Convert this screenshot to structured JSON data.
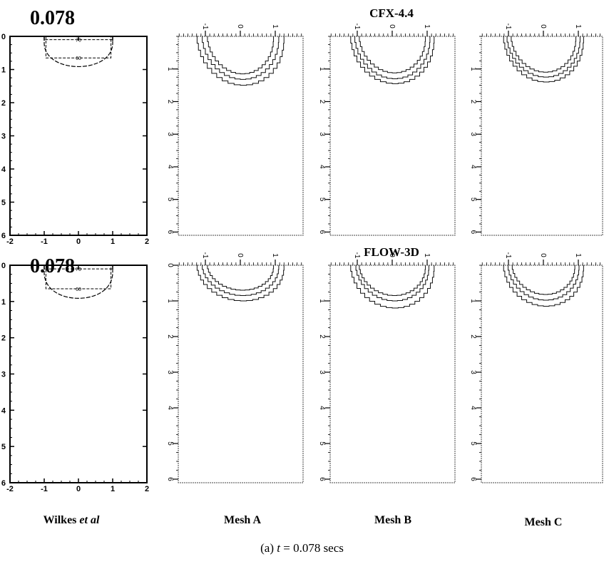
{
  "figure": {
    "time_label_top": "0.078",
    "time_label_bottom": "0.078",
    "row_titles": [
      "CFX-4.4",
      "FLOW-3D"
    ],
    "column_labels": {
      "wilkes_name": "Wilkes",
      "wilkes_suffix": "et al",
      "mesh_a": "Mesh A",
      "mesh_b": "Mesh B",
      "mesh_c": "Mesh C"
    },
    "caption": {
      "prefix": "(a)",
      "variable": "t",
      "equals": "=",
      "value": "0.078",
      "unit": "secs"
    }
  },
  "chart_data": [
    {
      "type": "contour",
      "panel": "Wilkes et al (row 1)",
      "xlim": [
        -2,
        2
      ],
      "ylim": [
        0,
        6
      ],
      "y_inverted": true,
      "xticks": [
        "-2",
        "-1",
        "0",
        "1",
        "2"
      ],
      "yticks": [
        "0",
        "1",
        "2",
        "3",
        "4",
        "5",
        "6"
      ],
      "contours": [
        {
          "level": "70",
          "halfwidth": 1.0,
          "depth": 0.1
        },
        {
          "level": "60",
          "halfwidth": 0.95,
          "depth": 0.65
        },
        {
          "level": "",
          "halfwidth": 1.0,
          "depth": 1.15
        }
      ]
    },
    {
      "type": "contour",
      "panel": "CFX-4.4 Mesh A",
      "xticks": [
        "-1",
        "0",
        "1"
      ],
      "yticks": [
        "1",
        "2",
        "3",
        "4",
        "5",
        "6"
      ],
      "contours": [
        {
          "halfwidth": 1.25,
          "depth": 1.5
        },
        {
          "halfwidth": 1.1,
          "depth": 1.32
        },
        {
          "halfwidth": 0.95,
          "depth": 1.15
        }
      ]
    },
    {
      "type": "contour",
      "panel": "CFX-4.4 Mesh B",
      "xticks": [
        "-1",
        "0",
        "1"
      ],
      "yticks": [
        "1",
        "2",
        "3",
        "4",
        "5",
        "6"
      ],
      "contours": [
        {
          "halfwidth": 1.2,
          "depth": 1.45
        },
        {
          "halfwidth": 1.08,
          "depth": 1.3
        },
        {
          "halfwidth": 0.95,
          "depth": 1.12
        }
      ]
    },
    {
      "type": "contour",
      "panel": "CFX-4.4 Mesh C",
      "xticks": [
        "-1",
        "0",
        "1"
      ],
      "yticks": [
        "1",
        "2",
        "3",
        "4",
        "5",
        "6"
      ],
      "contours": [
        {
          "halfwidth": 1.15,
          "depth": 1.4
        },
        {
          "halfwidth": 1.05,
          "depth": 1.25
        },
        {
          "halfwidth": 0.93,
          "depth": 1.1
        }
      ]
    },
    {
      "type": "contour",
      "panel": "FLOW-3D Mesh A",
      "xticks": [
        "-1",
        "0",
        "1"
      ],
      "yticks": [
        "0",
        "1",
        "2",
        "3",
        "4",
        "5",
        "6"
      ],
      "contours": [
        {
          "halfwidth": 1.25,
          "depth": 1.0
        },
        {
          "halfwidth": 1.1,
          "depth": 0.85
        },
        {
          "halfwidth": 0.95,
          "depth": 0.7
        }
      ]
    },
    {
      "type": "contour",
      "panel": "FLOW-3D Mesh B",
      "xticks": [
        "-1",
        "0",
        "1"
      ],
      "yticks": [
        "1",
        "2",
        "3",
        "4",
        "5",
        "6"
      ],
      "contours": [
        {
          "halfwidth": 1.2,
          "depth": 1.2
        },
        {
          "halfwidth": 1.05,
          "depth": 1.0
        },
        {
          "halfwidth": 0.95,
          "depth": 0.85
        }
      ]
    },
    {
      "type": "contour",
      "panel": "FLOW-3D Mesh C",
      "xticks": [
        "-1",
        "0",
        "1"
      ],
      "yticks": [
        "1",
        "2",
        "3",
        "4",
        "5",
        "6"
      ],
      "contours": [
        {
          "halfwidth": 1.15,
          "depth": 1.15
        },
        {
          "halfwidth": 1.02,
          "depth": 0.98
        },
        {
          "halfwidth": 0.9,
          "depth": 0.82
        }
      ]
    }
  ]
}
